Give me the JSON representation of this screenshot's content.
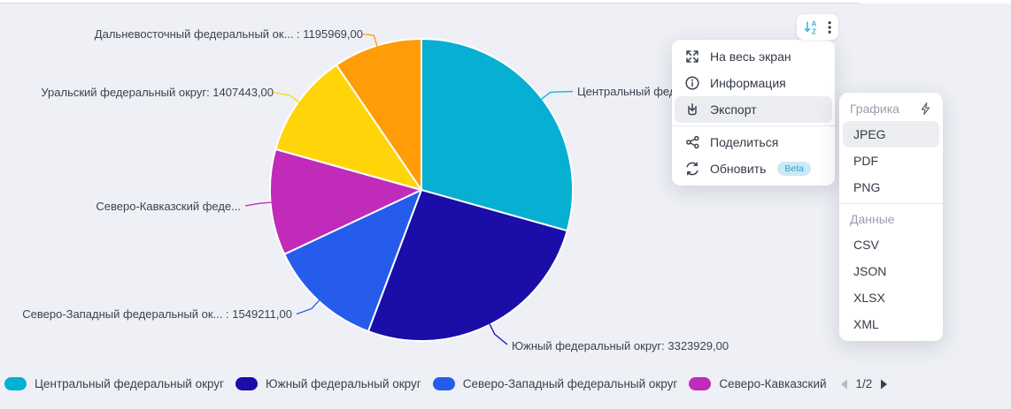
{
  "chart_data": {
    "type": "pie",
    "title": "",
    "legend_position": "bottom",
    "segments": [
      {
        "name": "Центральный федеральный округ",
        "callout": "Центральный фед",
        "value": 3700000,
        "value_estimated": true,
        "color": "#07b0d2"
      },
      {
        "name": "Южный федеральный округ",
        "callout": "Южный федеральный округ: 3323929,00",
        "value": 3323929,
        "color": "#1a0da8"
      },
      {
        "name": "Северо-Западный федеральный округ",
        "callout": "Северо-Западный федеральный ок... : 1549211,00",
        "value": 1549211,
        "color": "#255cec"
      },
      {
        "name": "Северо-Кавказский",
        "callout": "Северо-Кавказский феде...",
        "value": 1430000,
        "value_estimated": true,
        "color": "#c02bb9"
      },
      {
        "name": "Уральский федеральный округ",
        "callout": "Уральский федеральный округ: 1407443,00",
        "value": 1407443,
        "color": "#ffd50a"
      },
      {
        "name": "Дальневосточный федеральный округ",
        "callout": "Дальневосточный федеральный ок... : 1195969,00",
        "value": 1195969,
        "color": "#ff9c07"
      }
    ]
  },
  "toolbar": {
    "sort_icon": "sort-alphabetical-icon",
    "more_icon": "kebab-menu-icon"
  },
  "context_menu": {
    "items": [
      {
        "label": "На весь экран",
        "icon": "fullscreen-icon"
      },
      {
        "label": "Информация",
        "icon": "info-icon"
      },
      {
        "label": "Экспорт",
        "icon": "export-icon",
        "highlighted": true
      },
      {
        "label": "Поделиться",
        "icon": "share-icon"
      },
      {
        "label": "Обновить",
        "icon": "refresh-icon",
        "badge": "Beta"
      }
    ]
  },
  "export_menu": {
    "sections": [
      {
        "header": "Графика",
        "header_icon": "flash-icon",
        "items": [
          {
            "label": "JPEG",
            "highlighted": true
          },
          {
            "label": "PDF"
          },
          {
            "label": "PNG"
          }
        ]
      },
      {
        "header": "Данные",
        "items": [
          {
            "label": "CSV"
          },
          {
            "label": "JSON"
          },
          {
            "label": "XLSX"
          },
          {
            "label": "XML"
          }
        ]
      }
    ]
  },
  "legend": {
    "items": [
      {
        "label": "Центральный федеральный округ",
        "color": "#07b0d2"
      },
      {
        "label": "Южный федеральный округ",
        "color": "#1a0da8"
      },
      {
        "label": "Северо-Западный федеральный округ",
        "color": "#255cec"
      },
      {
        "label": "Северо-Кавказский",
        "color": "#c02bb9"
      }
    ],
    "page": "1/2"
  }
}
